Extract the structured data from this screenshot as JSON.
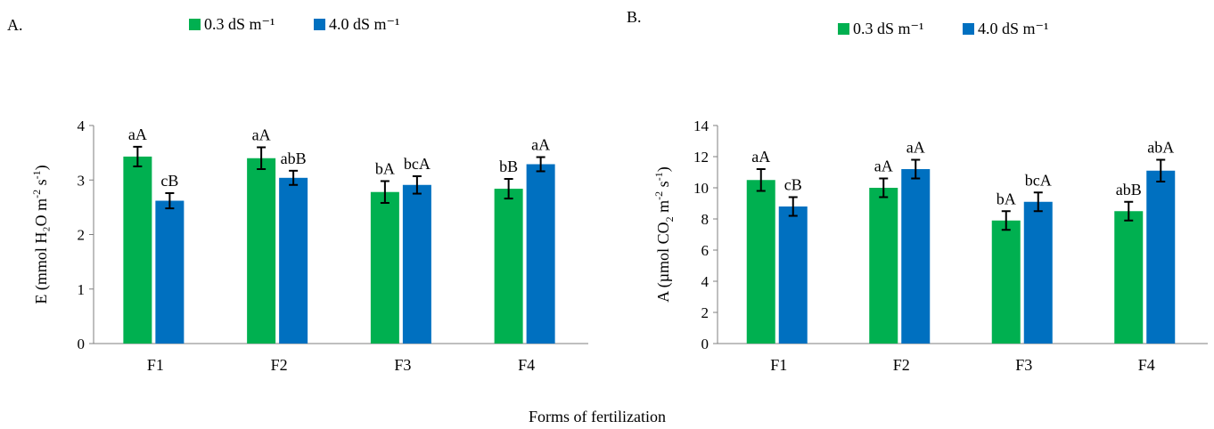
{
  "colors": {
    "low": "#00b050",
    "high": "#0070c0"
  },
  "shared": {
    "xlabel": "Forms of fertilization"
  },
  "chart_data": [
    {
      "type": "bar",
      "panel_label": "A.",
      "ylabel_main": "E (mmol H₂O m",
      "ylabel_exp1": "-2",
      "ylabel_mid": " s",
      "ylabel_exp2": "-1",
      "ylabel_end": ")",
      "categories": [
        "F1",
        "F2",
        "F3",
        "F4"
      ],
      "ylim": [
        0,
        4
      ],
      "yticks": [
        "0",
        "1",
        "2",
        "3",
        "4"
      ],
      "legend_position": "top",
      "series": [
        {
          "name": "0.3 dS m⁻¹",
          "color": "#00b050",
          "values": [
            3.43,
            3.4,
            2.78,
            2.84
          ],
          "errors": [
            0.18,
            0.2,
            0.2,
            0.18
          ],
          "labels": [
            "aA",
            "aA",
            "bA",
            "bB"
          ]
        },
        {
          "name": "4.0 dS m⁻¹",
          "color": "#0070c0",
          "values": [
            2.62,
            3.04,
            2.91,
            3.29
          ],
          "errors": [
            0.14,
            0.13,
            0.16,
            0.13
          ],
          "labels": [
            "cB",
            "abB",
            "bcA",
            "aA"
          ]
        }
      ]
    },
    {
      "type": "bar",
      "panel_label": "B.",
      "ylabel_main": "A (µmol CO",
      "ylabel_sub": "2",
      "ylabel_mid": " m",
      "ylabel_exp1": "-2",
      "ylabel_mid2": " s",
      "ylabel_exp2": "-1",
      "ylabel_end": ")",
      "categories": [
        "F1",
        "F2",
        "F3",
        "F4"
      ],
      "ylim": [
        0,
        14
      ],
      "yticks": [
        "0",
        "2",
        "4",
        "6",
        "8",
        "10",
        "12",
        "14"
      ],
      "legend_position": "top",
      "series": [
        {
          "name": "0.3 dS m⁻¹",
          "color": "#00b050",
          "values": [
            10.5,
            10.0,
            7.9,
            8.5
          ],
          "errors": [
            0.7,
            0.6,
            0.6,
            0.6
          ],
          "labels": [
            "aA",
            "aA",
            "bA",
            "abB"
          ]
        },
        {
          "name": "4.0 dS m⁻¹",
          "color": "#0070c0",
          "values": [
            8.8,
            11.2,
            9.1,
            11.1
          ],
          "errors": [
            0.6,
            0.6,
            0.6,
            0.7
          ],
          "labels": [
            "cB",
            "aA",
            "bcA",
            "abA"
          ]
        }
      ]
    }
  ]
}
